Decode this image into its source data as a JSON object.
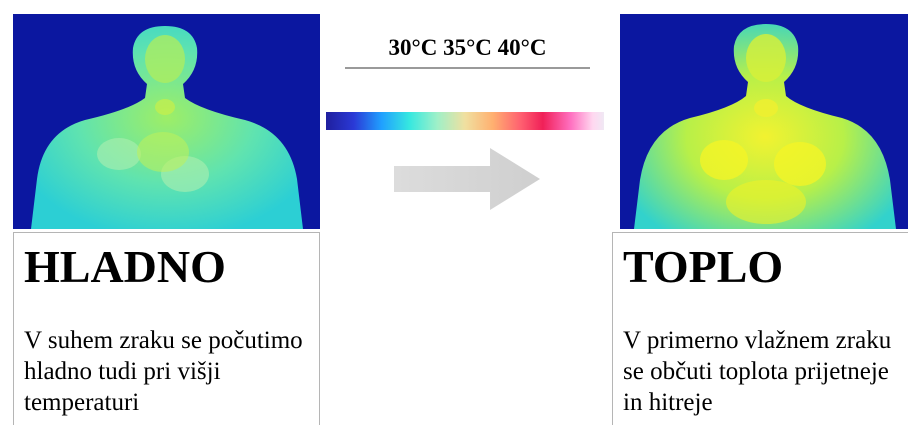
{
  "scale": {
    "label": "30°C 35°C 40°C"
  },
  "left_panel": {
    "title": "HLADNO",
    "description": "V suhem zraku se počutimo hladno tudi pri višji temperaturi"
  },
  "right_panel": {
    "title": "TOPLO",
    "description": "V primerno vlažnem zraku se občuti toplota prijetneje in hitreje"
  },
  "colors": {
    "background_cold": "#0b17a0",
    "body_edge": "#29d3d6",
    "body_mid": "#62e6b4",
    "body_warm": "#aef05a",
    "body_hot": "#eef22a",
    "arrow": "#d6d6d6",
    "caption_border": "#b5b5b5"
  },
  "icons": {
    "arrow": "right-arrow-icon"
  }
}
